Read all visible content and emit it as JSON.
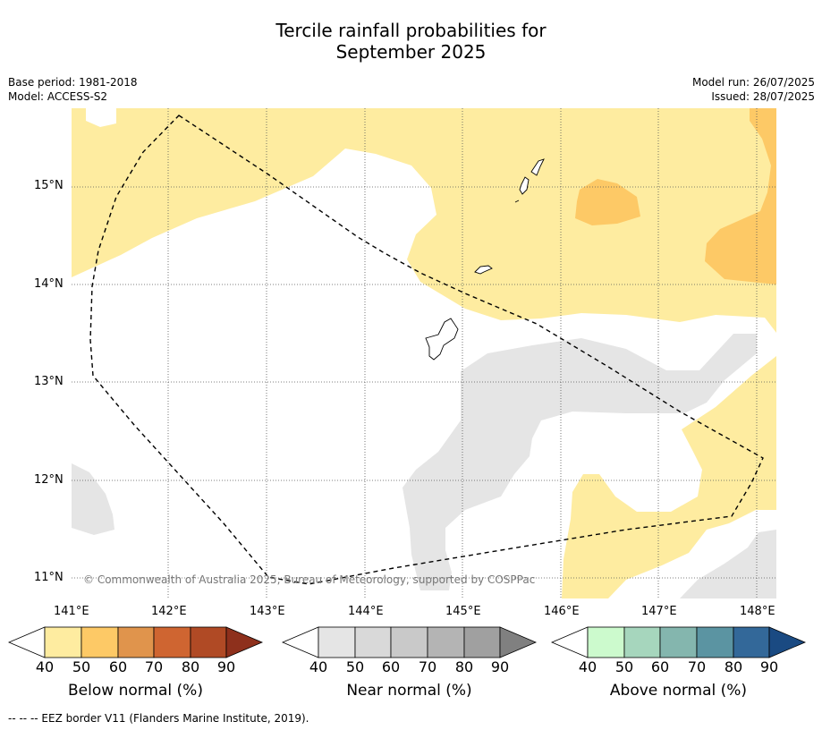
{
  "title_line1": "Tercile rainfall probabilities for",
  "title_line2": "September 2025",
  "meta": {
    "base_period": "Base period: 1981-2018",
    "model": "Model: ACCESS-S2",
    "model_run": "Model run: 26/07/2025",
    "issued": "Issued: 28/07/2025"
  },
  "map": {
    "lat_labels": [
      "15°N",
      "14°N",
      "13°N",
      "12°N",
      "11°N"
    ],
    "lon_labels": [
      "141°E",
      "142°E",
      "143°E",
      "144°E",
      "145°E",
      "146°E",
      "147°E",
      "148°E"
    ],
    "copyright": "© Commonwealth of Australia 2025, Bureau of Meteorology, supported by COSPPac",
    "colors": {
      "below_40_50": "#feeca0",
      "below_50_60": "#fdc966",
      "near_40_50": "#e5e5e5",
      "eez_border": "#000000"
    }
  },
  "colorbars": [
    {
      "title": "Below normal (%)",
      "ticks": [
        "40",
        "50",
        "60",
        "70",
        "80",
        "90"
      ],
      "colors": [
        "#ffffff",
        "#feeca0",
        "#fdc966",
        "#e0944c",
        "#cf6531",
        "#b04a25",
        "#8e301c"
      ]
    },
    {
      "title": "Near normal (%)",
      "ticks": [
        "40",
        "50",
        "60",
        "70",
        "80",
        "90"
      ],
      "colors": [
        "#ffffff",
        "#e5e5e5",
        "#d9d9d9",
        "#c9c9c9",
        "#b4b4b4",
        "#a0a0a0",
        "#808080"
      ]
    },
    {
      "title": "Above normal (%)",
      "ticks": [
        "40",
        "50",
        "60",
        "70",
        "80",
        "90"
      ],
      "colors": [
        "#ffffff",
        "#ccfacd",
        "#a6d6bd",
        "#84b6ae",
        "#5b94a2",
        "#336899",
        "#1a4a82"
      ]
    }
  ],
  "footnote": "--  --  -- EEZ border V11 (Flanders Marine Institute, 2019)."
}
